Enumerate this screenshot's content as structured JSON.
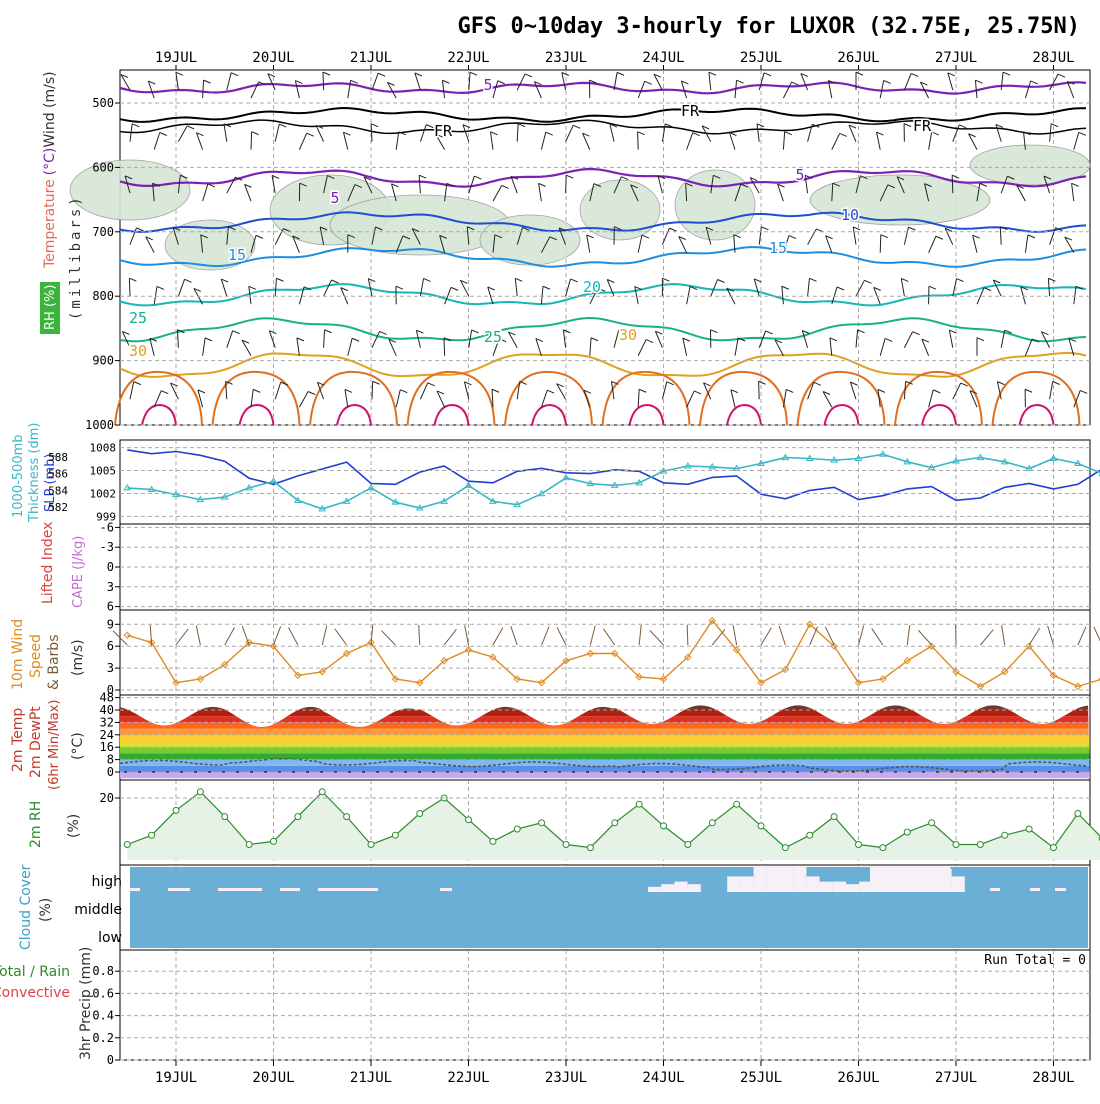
{
  "title": "GFS 0~10day 3-hourly for LUXOR (32.75E, 25.75N)",
  "dates": [
    "19JUL",
    "20JUL",
    "21JUL",
    "22JUL",
    "23JUL",
    "24JUL",
    "25JUL",
    "26JUL",
    "27JUL",
    "28JUL"
  ],
  "run_total": "Run Total = 0",
  "colors": {
    "grid": "#aaaaaa",
    "rh_fill": "#d5e6d5",
    "slp": "#1f3fd0",
    "thickness": "#3ab7c4",
    "wind_speed": "#e08a20",
    "barb": "#7b5a3a",
    "rh2m": "#2e8b2e",
    "rh2m_fill": "#e7f2e7",
    "cloud_bg": "#6baed6",
    "cloud_fill": "#f7f0f7",
    "li_line": "#e04040",
    "iso_5": "#7b22b5",
    "iso_fr": "#000000",
    "iso_10": "#1f4fd0",
    "iso_15": "#1f8ee0",
    "iso_20": "#19b5b5",
    "iso_25": "#19b08a",
    "iso_30": "#e0a020",
    "iso_35": "#e07020",
    "iso_40": "#d01070"
  },
  "panels": {
    "upper": {
      "label_rh": "RH (%)",
      "label_temperature": "Temperature",
      "label_celsius": "(°C)",
      "label_wind": "Wind (m/s)",
      "label_pressure": "(millibars)",
      "yticks": [
        "500",
        "600",
        "700",
        "800",
        "900",
        "1000"
      ],
      "contour_labels": [
        "5",
        "FR",
        "FR",
        "FR",
        "5",
        "5",
        "10",
        "15",
        "15",
        "20",
        "25",
        "25",
        "30",
        "30"
      ]
    },
    "slp": {
      "label_thickness": "1000-500mb",
      "label_thickness2": "Thickness (dm)",
      "label_slp": "SLP (mb)",
      "thickness_ticks": [
        "588",
        "586",
        "584",
        "582"
      ],
      "slp_ticks": [
        "1008",
        "1005",
        "1002",
        "999"
      ]
    },
    "li": {
      "label_li": "Lifted Index",
      "label_cape": "CAPE (J/kg)",
      "yticks": [
        "-6",
        "-3",
        "0",
        "3",
        "6"
      ]
    },
    "wind10": {
      "label1": "10m Wind",
      "label2": "Speed",
      "label3": "& Barbs",
      "label4": "(m/s)",
      "yticks": [
        "9",
        "6",
        "3",
        "0"
      ]
    },
    "temp": {
      "label1": "2m Temp",
      "label2": "2m DewPt",
      "label3": "(6hr Min/Max)",
      "label4": "(°C)",
      "yticks": [
        "48",
        "40",
        "32",
        "24",
        "16",
        "8",
        "0"
      ]
    },
    "rh": {
      "label1": "2m RH",
      "label2": "(%)",
      "yticks": [
        "20"
      ]
    },
    "cloud": {
      "label1": "Cloud Cover",
      "label2": "(%)",
      "levels": [
        "high",
        "middle",
        "low"
      ]
    },
    "precip": {
      "label1": "Total / Rain",
      "label2": "Convective",
      "label3": "3hr Precip (mm)",
      "yticks": [
        "0.8",
        "0.6",
        "0.4",
        "0.2",
        "0"
      ]
    }
  },
  "chart_data": [
    {
      "type": "line",
      "title": "1000-500mb Thickness (dm) / SLP (mb)",
      "x": [
        "18JUL 12",
        "18JUL 18",
        "19JUL 00",
        "19JUL 06",
        "19JUL 12",
        "19JUL 18",
        "20JUL 00",
        "20JUL 06",
        "20JUL 12",
        "20JUL 18",
        "21JUL 00",
        "21JUL 06",
        "21JUL 12",
        "21JUL 18",
        "22JUL 00",
        "22JUL 06",
        "22JUL 12",
        "22JUL 18",
        "23JUL 00",
        "23JUL 06",
        "23JUL 12",
        "23JUL 18",
        "24JUL 00",
        "24JUL 06",
        "24JUL 12",
        "24JUL 18",
        "25JUL 00",
        "25JUL 06",
        "25JUL 12",
        "25JUL 18",
        "26JUL 00",
        "26JUL 06",
        "26JUL 12",
        "26JUL 18",
        "27JUL 00",
        "27JUL 06",
        "27JUL 12",
        "27JUL 18",
        "28JUL 00",
        "28JUL 06",
        "28JUL 12"
      ],
      "series": [
        {
          "name": "SLP (mb)",
          "values": [
            1007.7,
            1007.2,
            1007.5,
            1007.0,
            1006.2,
            1004.0,
            1003.2,
            1004.3,
            1005.2,
            1006.1,
            1003.3,
            1003.2,
            1004.8,
            1005.6,
            1003.6,
            1003.4,
            1004.9,
            1005.3,
            1004.7,
            1004.6,
            1005.1,
            1004.9,
            1003.4,
            1003.2,
            1004.1,
            1004.3,
            1001.9,
            1001.3,
            1002.4,
            1002.8,
            1001.2,
            1001.7,
            1002.6,
            1002.9,
            1001.1,
            1001.4,
            1002.8,
            1003.3,
            1002.6,
            1003.2,
            1005.2
          ]
        },
        {
          "name": "Thickness (dm)",
          "values": [
            584.3,
            584.1,
            583.5,
            582.9,
            583.2,
            584.3,
            585.1,
            582.8,
            581.8,
            582.7,
            584.3,
            582.6,
            581.9,
            582.7,
            584.6,
            582.7,
            582.3,
            583.6,
            585.5,
            584.8,
            584.6,
            584.9,
            586.3,
            586.9,
            586.8,
            586.6,
            587.2,
            587.9,
            587.8,
            587.6,
            587.8,
            588.3,
            587.4,
            586.7,
            587.5,
            587.9,
            587.4,
            586.6,
            587.8,
            587.2,
            586.0
          ]
        }
      ],
      "ylim_slp": [
        998,
        1009
      ],
      "ylim_thickness": [
        580,
        590
      ]
    },
    {
      "type": "line",
      "title": "10m Wind Speed (m/s)",
      "x": [
        "18JUL 12",
        "18JUL 18",
        "19JUL 00",
        "19JUL 06",
        "19JUL 12",
        "19JUL 18",
        "20JUL 00",
        "20JUL 06",
        "20JUL 12",
        "20JUL 18",
        "21JUL 00",
        "21JUL 06",
        "21JUL 12",
        "21JUL 18",
        "22JUL 00",
        "22JUL 06",
        "22JUL 12",
        "22JUL 18",
        "23JUL 00",
        "23JUL 06",
        "23JUL 12",
        "23JUL 18",
        "24JUL 00",
        "24JUL 06",
        "24JUL 12",
        "24JUL 18",
        "25JUL 00",
        "25JUL 06",
        "25JUL 12",
        "25JUL 18",
        "26JUL 00",
        "26JUL 06",
        "26JUL 12",
        "26JUL 18",
        "27JUL 00",
        "27JUL 06",
        "27JUL 12",
        "27JUL 18",
        "28JUL 00",
        "28JUL 06",
        "28JUL 12"
      ],
      "series": [
        {
          "name": "Speed",
          "values": [
            7.5,
            6.5,
            1.0,
            1.5,
            3.5,
            6.5,
            6.0,
            2.0,
            2.5,
            5.0,
            6.5,
            1.5,
            1.0,
            4.0,
            5.5,
            4.5,
            1.5,
            1.0,
            4.0,
            5.0,
            5.0,
            1.8,
            1.5,
            4.5,
            9.5,
            5.5,
            1.0,
            2.8,
            9.0,
            6.0,
            1.0,
            1.5,
            4.0,
            6.0,
            2.5,
            0.5,
            2.5,
            6.0,
            2.0,
            0.5,
            1.5
          ]
        }
      ],
      "ylim": [
        0,
        10
      ]
    },
    {
      "type": "area",
      "title": "2m Temp / 2m DewPt (°C)",
      "x": [
        "19JUL",
        "20JUL",
        "21JUL",
        "22JUL",
        "23JUL",
        "24JUL",
        "25JUL",
        "26JUL",
        "27JUL",
        "28JUL"
      ],
      "series": [
        {
          "name": "2m Temp max",
          "values": [
            42,
            42,
            41,
            42,
            42,
            43,
            43,
            43,
            43,
            43
          ]
        },
        {
          "name": "2m Temp min",
          "values": [
            30,
            29,
            29,
            30,
            30,
            31,
            31,
            31,
            31,
            31
          ]
        },
        {
          "name": "2m DewPt",
          "values": [
            6,
            7,
            6,
            5,
            5,
            4,
            3,
            2,
            2,
            5
          ]
        }
      ],
      "ylim": [
        -2,
        48
      ]
    },
    {
      "type": "line",
      "title": "2m RH (%)",
      "x": [
        "18JUL 12",
        "18JUL 18",
        "19JUL 00",
        "19JUL 06",
        "19JUL 12",
        "19JUL 18",
        "20JUL 00",
        "20JUL 06",
        "20JUL 12",
        "20JUL 18",
        "21JUL 00",
        "21JUL 06",
        "21JUL 12",
        "21JUL 18",
        "22JUL 00",
        "22JUL 06",
        "22JUL 12",
        "22JUL 18",
        "23JUL 00",
        "23JUL 06",
        "23JUL 12",
        "23JUL 18",
        "24JUL 00",
        "24JUL 06",
        "24JUL 12",
        "24JUL 18",
        "25JUL 00",
        "25JUL 06",
        "25JUL 12",
        "25JUL 18",
        "26JUL 00",
        "26JUL 06",
        "26JUL 12",
        "26JUL 18",
        "27JUL 00",
        "27JUL 06",
        "27JUL 12",
        "27JUL 18",
        "28JUL 00",
        "28JUL 06",
        "28JUL 12"
      ],
      "series": [
        {
          "name": "2m RH",
          "values": [
            5,
            8,
            16,
            22,
            14,
            5,
            6,
            14,
            22,
            14,
            5,
            8,
            15,
            20,
            13,
            6,
            10,
            12,
            5,
            4,
            12,
            18,
            11,
            5,
            12,
            18,
            11,
            4,
            8,
            14,
            5,
            4,
            9,
            12,
            5,
            5,
            8,
            10,
            4,
            15,
            7
          ]
        }
      ],
      "ylim": [
        0,
        27
      ]
    },
    {
      "type": "bar",
      "title": "Cloud Cover (%)",
      "x": [
        "23JUL 21",
        "24JUL 00",
        "24JUL 03",
        "24JUL 06",
        "24JUL 09",
        "24JUL 12",
        "24JUL 15",
        "24JUL 18",
        "24JUL 21",
        "25JUL 00",
        "25JUL 03",
        "25JUL 06",
        "25JUL 09",
        "25JUL 12",
        "25JUL 15",
        "25JUL 18",
        "25JUL 21",
        "26JUL 00",
        "26JUL 03",
        "26JUL 06",
        "26JUL 09",
        "26JUL 12",
        "26JUL 15",
        "26JUL 18"
      ],
      "series": [
        {
          "name": "high",
          "values": [
            20,
            30,
            40,
            30,
            0,
            0,
            60,
            60,
            100,
            100,
            100,
            100,
            60,
            40,
            40,
            30,
            40,
            60,
            80,
            100,
            100,
            100,
            90,
            60
          ]
        }
      ],
      "ylim": [
        0,
        100
      ]
    },
    {
      "type": "bar",
      "title": "3hr Precip (mm)",
      "x": [
        "19JUL",
        "20JUL",
        "21JUL",
        "22JUL",
        "23JUL",
        "24JUL",
        "25JUL",
        "26JUL",
        "27JUL",
        "28JUL"
      ],
      "series": [
        {
          "name": "Total / Rain",
          "values": [
            0,
            0,
            0,
            0,
            0,
            0,
            0,
            0,
            0,
            0
          ]
        }
      ],
      "ylim": [
        0,
        1
      ]
    }
  ]
}
